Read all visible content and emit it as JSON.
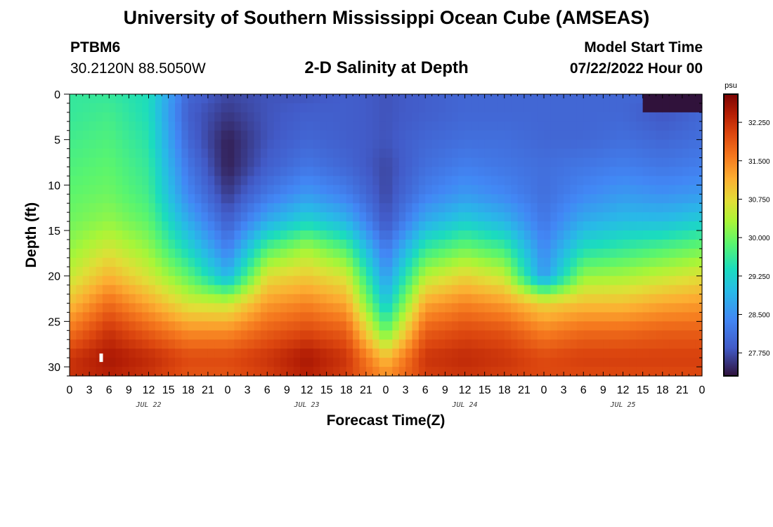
{
  "page": {
    "title_top": "University of Southern Mississippi Ocean Cube (AMSEAS)",
    "title_bottom": "University of Southern Mississippi Ocean Cube (AMSEAS)",
    "station_id": "PTBM6",
    "station_coords": "30.2120N  88.5050W",
    "model_start_label": "Model Start Time",
    "model_start_value": "07/22/2022 Hour 00"
  },
  "chart_data": {
    "type": "heatmap",
    "title": "2-D Salinity at Depth",
    "xlabel": "Forecast Time(Z)",
    "ylabel": "Depth (ft)",
    "xlim": [
      0,
      96
    ],
    "ylim": [
      0,
      31
    ],
    "x_tick_values": [
      0,
      3,
      6,
      9,
      12,
      15,
      18,
      21,
      24,
      27,
      30,
      33,
      36,
      39,
      42,
      45,
      48,
      51,
      54,
      57,
      60,
      63,
      66,
      69,
      72,
      75,
      78,
      81,
      84,
      87,
      90,
      93,
      96
    ],
    "x_tick_labels": [
      "0",
      "3",
      "6",
      "9",
      "12",
      "15",
      "18",
      "21",
      "0",
      "3",
      "6",
      "9",
      "12",
      "15",
      "18",
      "21",
      "0",
      "3",
      "6",
      "9",
      "12",
      "15",
      "18",
      "21",
      "0",
      "3",
      "6",
      "9",
      "12",
      "15",
      "18",
      "21",
      "0"
    ],
    "day_labels": [
      {
        "hour": 12,
        "label": "JUL 22"
      },
      {
        "hour": 36,
        "label": "JUL 23"
      },
      {
        "hour": 60,
        "label": "JUL 24"
      },
      {
        "hour": 84,
        "label": "JUL 25"
      }
    ],
    "y_tick_values": [
      0,
      5,
      10,
      15,
      20,
      25,
      30
    ],
    "y_tick_labels": [
      "0",
      "5",
      "10",
      "15",
      "20",
      "25",
      "30"
    ],
    "colorbar": {
      "unit": "psu",
      "min": 27.3,
      "max": 32.8,
      "tick_values": [
        27.75,
        28.5,
        29.25,
        30.0,
        30.75,
        31.5,
        32.25
      ],
      "tick_labels": [
        "27.750",
        "28.500",
        "29.250",
        "30.000",
        "30.750",
        "31.500",
        "32.250"
      ]
    },
    "anchor_hours": [
      0,
      6,
      12,
      18,
      24,
      30,
      36,
      42,
      48,
      54,
      60,
      66,
      72,
      78,
      84,
      90,
      96
    ],
    "anchor_depths": [
      0,
      2,
      5,
      8,
      11,
      14,
      17,
      20,
      23,
      26,
      29,
      31
    ],
    "salinity_profiles_psu": [
      [
        29.6,
        29.6,
        29.7,
        29.8,
        29.9,
        30.0,
        30.2,
        30.5,
        31.0,
        31.6,
        32.2,
        32.2
      ],
      [
        29.6,
        29.7,
        29.8,
        29.9,
        30.0,
        30.2,
        30.6,
        31.1,
        31.7,
        32.2,
        32.5,
        32.4
      ],
      [
        29.4,
        29.4,
        29.5,
        29.6,
        29.7,
        29.9,
        30.2,
        30.6,
        31.2,
        31.8,
        32.3,
        32.2
      ],
      [
        28.0,
        27.9,
        28.0,
        28.2,
        28.4,
        28.8,
        29.3,
        29.9,
        30.6,
        31.4,
        32.0,
        31.9
      ],
      [
        27.7,
        27.6,
        27.4,
        27.4,
        27.6,
        27.9,
        28.3,
        28.9,
        30.5,
        31.4,
        32.0,
        31.9
      ],
      [
        27.8,
        27.8,
        27.8,
        27.9,
        28.2,
        28.8,
        29.8,
        30.7,
        31.3,
        31.8,
        32.2,
        32.1
      ],
      [
        27.8,
        27.9,
        28.0,
        28.2,
        28.6,
        29.3,
        30.3,
        30.9,
        31.5,
        32.0,
        32.5,
        32.4
      ],
      [
        27.9,
        27.9,
        27.9,
        28.0,
        28.3,
        28.9,
        29.8,
        30.6,
        31.2,
        31.8,
        32.2,
        32.1
      ],
      [
        27.8,
        27.8,
        27.8,
        27.7,
        27.7,
        27.8,
        28.2,
        28.6,
        29.1,
        29.9,
        31.0,
        31.4
      ],
      [
        27.9,
        27.9,
        28.0,
        28.1,
        28.3,
        28.8,
        29.6,
        30.4,
        31.2,
        31.8,
        32.2,
        32.1
      ],
      [
        28.0,
        28.0,
        28.1,
        28.3,
        28.6,
        29.2,
        30.0,
        30.8,
        31.5,
        32.0,
        32.3,
        32.2
      ],
      [
        28.0,
        28.0,
        28.1,
        28.2,
        28.4,
        28.9,
        29.7,
        30.5,
        31.3,
        31.9,
        32.2,
        32.1
      ],
      [
        28.0,
        28.0,
        28.0,
        28.1,
        28.1,
        28.2,
        28.4,
        28.6,
        30.8,
        31.5,
        32.0,
        32.0
      ],
      [
        28.0,
        28.0,
        28.0,
        28.2,
        28.4,
        28.8,
        29.4,
        30.2,
        31.0,
        31.7,
        32.1,
        32.0
      ],
      [
        28.0,
        28.0,
        28.1,
        28.3,
        28.6,
        29.0,
        29.6,
        30.3,
        31.0,
        31.7,
        32.1,
        32.0
      ],
      [
        28.0,
        27.8,
        28.0,
        28.2,
        28.5,
        29.0,
        29.8,
        30.5,
        31.2,
        31.8,
        32.1,
        32.0
      ],
      [
        28.0,
        28.0,
        28.1,
        28.3,
        28.6,
        29.2,
        30.0,
        30.7,
        31.3,
        31.8,
        32.1,
        32.0
      ]
    ],
    "surface_fresh_patch": {
      "hours": [
        87,
        96
      ],
      "depths": [
        0,
        1.5
      ],
      "value_psu": 27.3
    },
    "marker": {
      "hour": 4.8,
      "depth": 29.0
    }
  }
}
